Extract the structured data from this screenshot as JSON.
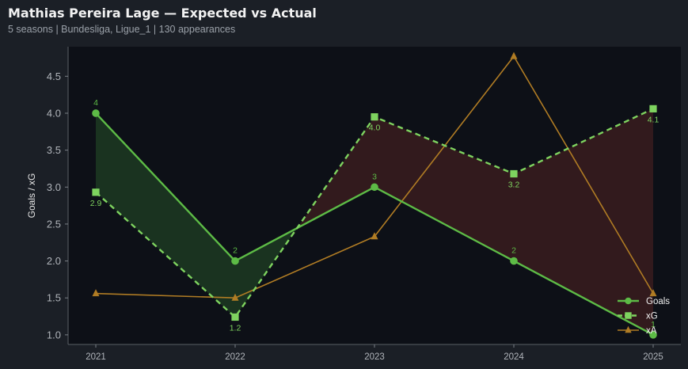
{
  "header": {
    "title": "Mathias Pereira Lage — Expected vs Actual",
    "subtitle": "5 seasons | Bundesliga, Ligue_1 | 130 appearances"
  },
  "colors": {
    "background": "#1b1f26",
    "plot_background": "#0d1017",
    "goals": "#5dbb46",
    "xg": "#7ed35f",
    "xa": "#b07c24",
    "overperform_fill": "#1d3a22",
    "underperform_fill": "#3a1c1f"
  },
  "chart_data": {
    "type": "line",
    "title": "Mathias Pereira Lage — Expected vs Actual",
    "subtitle": "5 seasons | Bundesliga, Ligue_1 | 130 appearances",
    "xlabel": "",
    "ylabel": "Goals / xG",
    "categories": [
      "2021",
      "2022",
      "2023",
      "2024",
      "2025"
    ],
    "ylim": [
      0.87,
      4.9
    ],
    "yticks": [
      1.0,
      1.5,
      2.0,
      2.5,
      3.0,
      3.5,
      4.0,
      4.5
    ],
    "ytick_labels": [
      "1.0",
      "1.5",
      "2.0",
      "2.5",
      "3.0",
      "3.5",
      "4.0",
      "4.5"
    ],
    "grid": false,
    "legend_position": "bottom-right",
    "series": [
      {
        "name": "Goals",
        "marker": "circle",
        "line": "solid",
        "values": [
          4,
          2,
          3,
          2,
          1
        ],
        "labels": [
          "4",
          "2",
          "3",
          "2",
          "1"
        ],
        "label_position": "above"
      },
      {
        "name": "xG",
        "marker": "square",
        "line": "dashed",
        "values": [
          2.93,
          1.24,
          3.95,
          3.18,
          4.06
        ],
        "labels": [
          "2.9",
          "1.2",
          "4.0",
          "3.2",
          "4.1"
        ],
        "label_position": "below"
      },
      {
        "name": "xA",
        "marker": "triangle",
        "line": "solid",
        "values": [
          1.56,
          1.5,
          2.33,
          4.77,
          1.56
        ]
      }
    ],
    "shading": "between Goals and xG: green where Goals > xG, red where Goals < xG"
  }
}
